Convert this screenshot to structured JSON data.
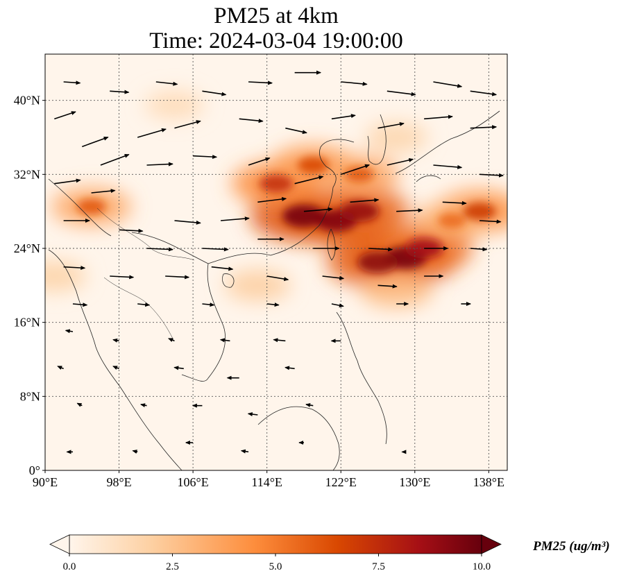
{
  "title": {
    "line1": "PM25 at 4km",
    "line2": "Time: 2024-03-04 19:00:00"
  },
  "map": {
    "lon_range": [
      90,
      140
    ],
    "lat_range": [
      0,
      45
    ],
    "lon_ticks": [
      {
        "value": 90,
        "label": "90°E"
      },
      {
        "value": 98,
        "label": "98°E"
      },
      {
        "value": 106,
        "label": "106°E"
      },
      {
        "value": 114,
        "label": "114°E"
      },
      {
        "value": 122,
        "label": "122°E"
      },
      {
        "value": 130,
        "label": "130°E"
      },
      {
        "value": 138,
        "label": "138°E"
      }
    ],
    "lat_ticks": [
      {
        "value": 0,
        "label": "0°"
      },
      {
        "value": 8,
        "label": "8°N"
      },
      {
        "value": 16,
        "label": "16°N"
      },
      {
        "value": 24,
        "label": "24°N"
      },
      {
        "value": 32,
        "label": "32°N"
      },
      {
        "value": 40,
        "label": "40°N"
      }
    ],
    "gridlines": true,
    "colormap": [
      "#fff5eb",
      "#fdd0a2",
      "#fd8d3c",
      "#d94801",
      "#a50f15",
      "#67000d"
    ],
    "pm25_hotspots": [
      {
        "lon": 118,
        "lat": 27.5,
        "value": 9.5
      },
      {
        "lon": 121.5,
        "lat": 27,
        "value": 9.2
      },
      {
        "lon": 124,
        "lat": 28,
        "value": 8.5
      },
      {
        "lon": 129,
        "lat": 23,
        "value": 9.6
      },
      {
        "lon": 126,
        "lat": 22.5,
        "value": 8.8
      },
      {
        "lon": 131,
        "lat": 24,
        "value": 8.0
      },
      {
        "lon": 115,
        "lat": 31,
        "value": 6.8
      },
      {
        "lon": 119,
        "lat": 33,
        "value": 6.0
      },
      {
        "lon": 124,
        "lat": 32,
        "value": 5.5
      },
      {
        "lon": 137,
        "lat": 28,
        "value": 6.5
      },
      {
        "lon": 134,
        "lat": 27,
        "value": 5.0
      },
      {
        "lon": 128,
        "lat": 19.5,
        "value": 4.5
      },
      {
        "lon": 95,
        "lat": 28.5,
        "value": 5.5
      },
      {
        "lon": 91,
        "lat": 21,
        "value": 3.2
      },
      {
        "lon": 113,
        "lat": 20,
        "value": 3.5
      },
      {
        "lon": 104,
        "lat": 39.5,
        "value": 2.5
      },
      {
        "lon": 128,
        "lat": 36,
        "value": 3.0
      }
    ],
    "wind_vectors": [
      {
        "lon": 91,
        "lat": 38,
        "u": 18,
        "v": 6
      },
      {
        "lon": 94,
        "lat": 35,
        "u": 22,
        "v": 8
      },
      {
        "lon": 96,
        "lat": 33,
        "u": 24,
        "v": 9
      },
      {
        "lon": 91,
        "lat": 31,
        "u": 22,
        "v": 3
      },
      {
        "lon": 95,
        "lat": 30,
        "u": 20,
        "v": 2
      },
      {
        "lon": 100,
        "lat": 36,
        "u": 24,
        "v": 7
      },
      {
        "lon": 104,
        "lat": 37,
        "u": 22,
        "v": 6
      },
      {
        "lon": 101,
        "lat": 33,
        "u": 22,
        "v": 1
      },
      {
        "lon": 106,
        "lat": 34,
        "u": 20,
        "v": -1
      },
      {
        "lon": 92,
        "lat": 27,
        "u": 22,
        "v": 0
      },
      {
        "lon": 98,
        "lat": 26,
        "u": 20,
        "v": -1
      },
      {
        "lon": 104,
        "lat": 27,
        "u": 22,
        "v": -2
      },
      {
        "lon": 109,
        "lat": 27,
        "u": 24,
        "v": 2
      },
      {
        "lon": 92,
        "lat": 42,
        "u": 14,
        "v": -1
      },
      {
        "lon": 97,
        "lat": 41,
        "u": 16,
        "v": -1
      },
      {
        "lon": 102,
        "lat": 42,
        "u": 18,
        "v": -2
      },
      {
        "lon": 107,
        "lat": 41,
        "u": 20,
        "v": -3
      },
      {
        "lon": 112,
        "lat": 42,
        "u": 20,
        "v": -1
      },
      {
        "lon": 117,
        "lat": 43,
        "u": 22,
        "v": 0
      },
      {
        "lon": 122,
        "lat": 42,
        "u": 22,
        "v": -2
      },
      {
        "lon": 127,
        "lat": 41,
        "u": 24,
        "v": -3
      },
      {
        "lon": 132,
        "lat": 42,
        "u": 24,
        "v": -4
      },
      {
        "lon": 136,
        "lat": 41,
        "u": 22,
        "v": -3
      },
      {
        "lon": 111,
        "lat": 38,
        "u": 20,
        "v": -2
      },
      {
        "lon": 116,
        "lat": 37,
        "u": 18,
        "v": -4
      },
      {
        "lon": 121,
        "lat": 38,
        "u": 20,
        "v": 3
      },
      {
        "lon": 126,
        "lat": 37,
        "u": 22,
        "v": 4
      },
      {
        "lon": 131,
        "lat": 38,
        "u": 24,
        "v": 2
      },
      {
        "lon": 136,
        "lat": 37,
        "u": 22,
        "v": 1
      },
      {
        "lon": 112,
        "lat": 33,
        "u": 18,
        "v": 6
      },
      {
        "lon": 117,
        "lat": 31,
        "u": 24,
        "v": 6
      },
      {
        "lon": 122,
        "lat": 32,
        "u": 24,
        "v": 8
      },
      {
        "lon": 127,
        "lat": 33,
        "u": 22,
        "v": 5
      },
      {
        "lon": 132,
        "lat": 33,
        "u": 24,
        "v": -2
      },
      {
        "lon": 137,
        "lat": 32,
        "u": 20,
        "v": -1
      },
      {
        "lon": 113,
        "lat": 29,
        "u": 24,
        "v": 3
      },
      {
        "lon": 118,
        "lat": 28,
        "u": 24,
        "v": 2
      },
      {
        "lon": 123,
        "lat": 29,
        "u": 24,
        "v": 2
      },
      {
        "lon": 128,
        "lat": 28,
        "u": 22,
        "v": 1
      },
      {
        "lon": 133,
        "lat": 29,
        "u": 20,
        "v": -1
      },
      {
        "lon": 137,
        "lat": 27,
        "u": 18,
        "v": -1
      },
      {
        "lon": 101,
        "lat": 24,
        "u": 22,
        "v": -1
      },
      {
        "lon": 107,
        "lat": 24,
        "u": 22,
        "v": -1
      },
      {
        "lon": 113,
        "lat": 25,
        "u": 22,
        "v": 0
      },
      {
        "lon": 119,
        "lat": 24,
        "u": 22,
        "v": 0
      },
      {
        "lon": 125,
        "lat": 24,
        "u": 20,
        "v": -1
      },
      {
        "lon": 131,
        "lat": 24,
        "u": 20,
        "v": 0
      },
      {
        "lon": 136,
        "lat": 24,
        "u": 14,
        "v": -1
      },
      {
        "lon": 92,
        "lat": 22,
        "u": 18,
        "v": -1
      },
      {
        "lon": 97,
        "lat": 21,
        "u": 20,
        "v": -1
      },
      {
        "lon": 103,
        "lat": 21,
        "u": 20,
        "v": -1
      },
      {
        "lon": 108,
        "lat": 22,
        "u": 18,
        "v": -2
      },
      {
        "lon": 114,
        "lat": 21,
        "u": 18,
        "v": -3
      },
      {
        "lon": 120,
        "lat": 21,
        "u": 18,
        "v": -2
      },
      {
        "lon": 126,
        "lat": 20,
        "u": 16,
        "v": -1
      },
      {
        "lon": 131,
        "lat": 21,
        "u": 16,
        "v": 0
      },
      {
        "lon": 93,
        "lat": 18,
        "u": 12,
        "v": -1
      },
      {
        "lon": 100,
        "lat": 18,
        "u": 10,
        "v": -1
      },
      {
        "lon": 107,
        "lat": 18,
        "u": 10,
        "v": -1
      },
      {
        "lon": 114,
        "lat": 18,
        "u": 10,
        "v": -1
      },
      {
        "lon": 121,
        "lat": 18,
        "u": 10,
        "v": -2
      },
      {
        "lon": 128,
        "lat": 18,
        "u": 10,
        "v": 0
      },
      {
        "lon": 135,
        "lat": 18,
        "u": 8,
        "v": 0
      },
      {
        "lon": 93,
        "lat": 15,
        "u": -6,
        "v": 1
      },
      {
        "lon": 98,
        "lat": 14,
        "u": -5,
        "v": 1
      },
      {
        "lon": 104,
        "lat": 14,
        "u": -5,
        "v": 2
      },
      {
        "lon": 110,
        "lat": 14,
        "u": -8,
        "v": 1
      },
      {
        "lon": 116,
        "lat": 14,
        "u": -10,
        "v": 1
      },
      {
        "lon": 122,
        "lat": 14,
        "u": -8,
        "v": 0
      },
      {
        "lon": 92,
        "lat": 11,
        "u": -5,
        "v": 2
      },
      {
        "lon": 98,
        "lat": 11,
        "u": -5,
        "v": 2
      },
      {
        "lon": 105,
        "lat": 11,
        "u": -8,
        "v": 1
      },
      {
        "lon": 111,
        "lat": 10,
        "u": -10,
        "v": 0
      },
      {
        "lon": 117,
        "lat": 11,
        "u": -8,
        "v": 1
      },
      {
        "lon": 94,
        "lat": 7,
        "u": -4,
        "v": 2
      },
      {
        "lon": 101,
        "lat": 7,
        "u": -5,
        "v": 1
      },
      {
        "lon": 107,
        "lat": 7,
        "u": -8,
        "v": 0
      },
      {
        "lon": 113,
        "lat": 6,
        "u": -8,
        "v": 1
      },
      {
        "lon": 119,
        "lat": 7,
        "u": -6,
        "v": 1
      },
      {
        "lon": 93,
        "lat": 2,
        "u": -5,
        "v": 0
      },
      {
        "lon": 100,
        "lat": 2,
        "u": -4,
        "v": 1
      },
      {
        "lon": 106,
        "lat": 3,
        "u": -6,
        "v": 0
      },
      {
        "lon": 112,
        "lat": 2,
        "u": -6,
        "v": 1
      },
      {
        "lon": 118,
        "lat": 3,
        "u": -4,
        "v": 0
      },
      {
        "lon": 129,
        "lat": 2,
        "u": -3,
        "v": 0
      }
    ]
  },
  "colorbar": {
    "min": 0,
    "max": 10,
    "extend": "both",
    "ticks": [
      {
        "value": 0,
        "label": "0.0"
      },
      {
        "value": 2.5,
        "label": "2.5"
      },
      {
        "value": 5,
        "label": "5.0"
      },
      {
        "value": 7.5,
        "label": "7.5"
      },
      {
        "value": 10,
        "label": "10.0"
      }
    ],
    "label": "PM25 (ug/m³)"
  }
}
